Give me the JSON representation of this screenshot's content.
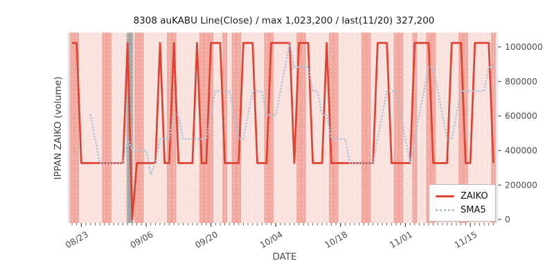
{
  "chart_data": {
    "type": "line",
    "title": "8308 auKABU Line(Close) / max 1,023,200 / last(11/20) 327,200",
    "xlabel": "DATE",
    "ylabel": "IPPAN ZAIKO (volume)",
    "max_value": 1023200,
    "base_value": 327200,
    "last_date": "11/20",
    "last_value": 327200,
    "ylim": [
      -20000,
      1082000
    ],
    "y_ticks": [
      0,
      200000,
      400000,
      600000,
      800000,
      1000000
    ],
    "x_tick_labels": [
      "08/23",
      "09/06",
      "09/20",
      "10/04",
      "10/18",
      "11/01",
      "11/15"
    ],
    "x_tick_day_index": [
      2,
      16,
      30,
      44,
      58,
      72,
      86
    ],
    "grid": "vertical-daily-white-dashed",
    "legend_position": "lower right",
    "dates": [
      "08/21",
      "08/22",
      "08/23",
      "08/24",
      "08/25",
      "08/26",
      "08/27",
      "08/28",
      "08/29",
      "08/30",
      "08/31",
      "09/01",
      "09/02",
      "09/03",
      "09/04",
      "09/05",
      "09/06",
      "09/07",
      "09/08",
      "09/09",
      "09/10",
      "09/11",
      "09/12",
      "09/13",
      "09/14",
      "09/15",
      "09/16",
      "09/17",
      "09/18",
      "09/19",
      "09/20",
      "09/21",
      "09/22",
      "09/23",
      "09/24",
      "09/25",
      "09/26",
      "09/27",
      "09/28",
      "09/29",
      "09/30",
      "10/01",
      "10/02",
      "10/03",
      "10/04",
      "10/05",
      "10/06",
      "10/07",
      "10/08",
      "10/09",
      "10/10",
      "10/11",
      "10/12",
      "10/13",
      "10/14",
      "10/15",
      "10/16",
      "10/17",
      "10/18",
      "10/19",
      "10/20",
      "10/21",
      "10/22",
      "10/23",
      "10/24",
      "10/25",
      "10/26",
      "10/27",
      "10/28",
      "10/29",
      "10/30",
      "10/31",
      "11/01",
      "11/02",
      "11/03",
      "11/04",
      "11/05",
      "11/06",
      "11/07",
      "11/08",
      "11/09",
      "11/10",
      "11/11",
      "11/12",
      "11/13",
      "11/14",
      "11/15",
      "11/16",
      "11/17",
      "11/18",
      "11/19",
      "11/20"
    ],
    "series": [
      {
        "name": "ZAIKO",
        "style": "solid",
        "color": "#de4231",
        "values": [
          1023200,
          1023200,
          327200,
          327200,
          327200,
          327200,
          327200,
          327200,
          327200,
          327200,
          327200,
          327200,
          1023200,
          0,
          327200,
          327200,
          327200,
          327200,
          327200,
          1023200,
          327200,
          327200,
          1023200,
          327200,
          327200,
          327200,
          327200,
          1023200,
          327200,
          327200,
          1023200,
          1023200,
          1023200,
          327200,
          327200,
          327200,
          327200,
          1023200,
          1023200,
          1023200,
          327200,
          327200,
          327200,
          1023200,
          1023200,
          1023200,
          1023200,
          1023200,
          327200,
          1023200,
          1023200,
          1023200,
          327200,
          327200,
          327200,
          1023200,
          327200,
          327200,
          327200,
          327200,
          327200,
          327200,
          327200,
          327200,
          327200,
          327200,
          1023200,
          1023200,
          1023200,
          327200,
          327200,
          327200,
          327200,
          327200,
          1023200,
          1023200,
          1023200,
          1023200,
          327200,
          327200,
          327200,
          327200,
          1023200,
          1023200,
          1023200,
          327200,
          327200,
          1023200,
          1023200,
          1023200,
          1023200,
          327200
        ]
      },
      {
        "name": "SMA5",
        "style": "dotted",
        "color": "#a9c4dc",
        "derived": "5-day moving average of ZAIKO"
      }
    ],
    "closed_day_bands": [
      [
        0,
        1
      ],
      [
        7,
        8
      ],
      [
        14,
        15
      ],
      [
        21,
        22
      ],
      [
        28,
        30
      ],
      [
        33,
        33
      ],
      [
        35,
        36
      ],
      [
        42,
        43
      ],
      [
        49,
        50
      ],
      [
        56,
        57
      ],
      [
        63,
        64
      ],
      [
        70,
        71
      ],
      [
        74,
        74
      ],
      [
        77,
        78
      ],
      [
        84,
        85
      ],
      [
        91,
        91
      ]
    ],
    "gray_band_day_range": [
      11.8,
      13.2
    ],
    "colors": {
      "plot_bg": "#e8e8e8",
      "session_bg": "#f9e1dd",
      "closed_band": "#f2a89e",
      "gray_band": "#a6a6a6",
      "gridline": "#ffffff",
      "tick": "#333333",
      "tick_label": "#4d4d4d"
    }
  },
  "legend": {
    "items": [
      {
        "label": "ZAIKO"
      },
      {
        "label": "SMA5"
      }
    ]
  }
}
